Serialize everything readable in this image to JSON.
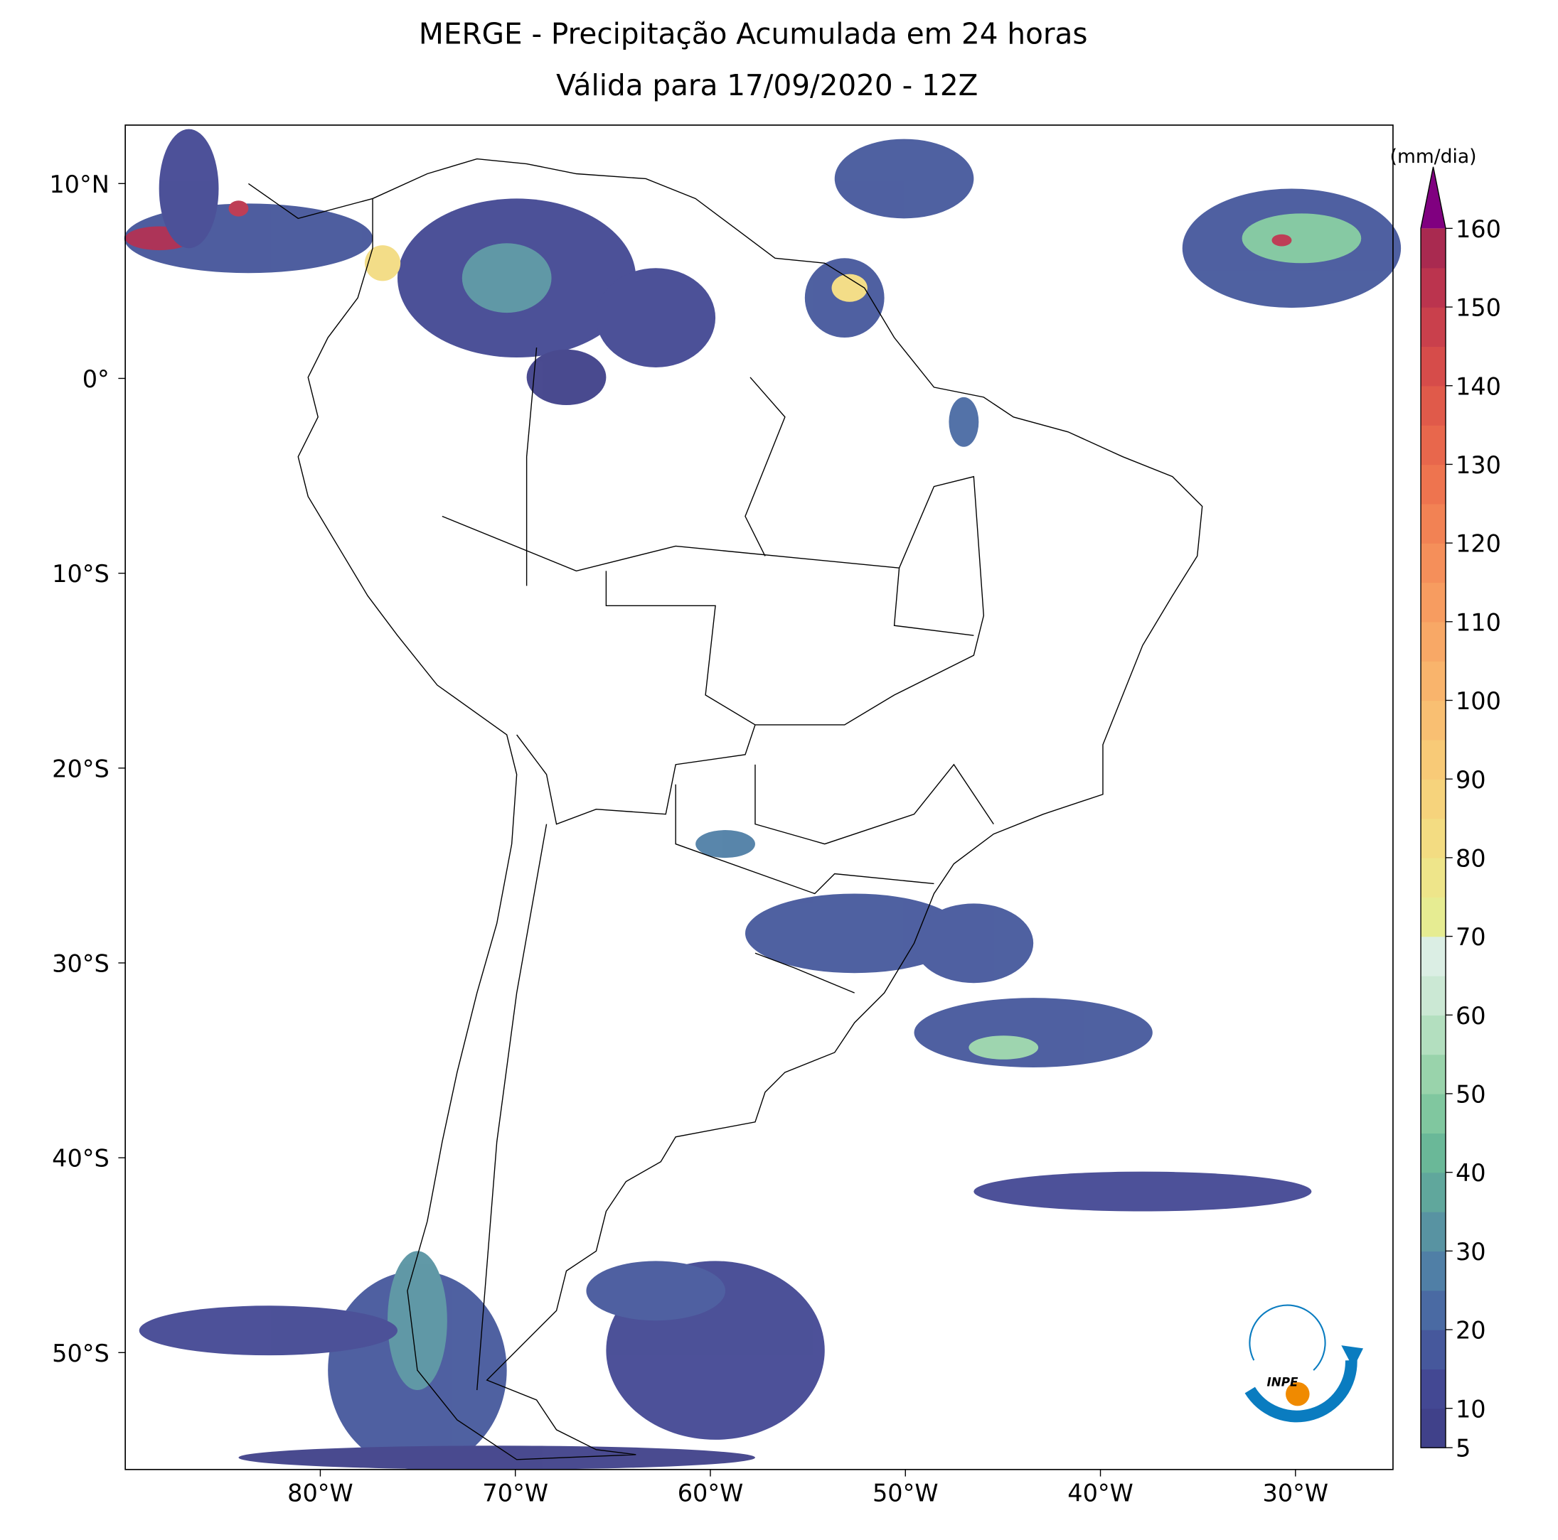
{
  "chart_data": {
    "type": "map",
    "title": "MERGE - Precipitação Acumulada em 24 horas",
    "subtitle": "Válida para 17/09/2020 - 12Z",
    "xlim": [
      -90,
      -25
    ],
    "ylim": [
      -56,
      13
    ],
    "xticks": [
      {
        "value": -80,
        "label": "80°W"
      },
      {
        "value": -70,
        "label": "70°W"
      },
      {
        "value": -60,
        "label": "60°W"
      },
      {
        "value": -50,
        "label": "50°W"
      },
      {
        "value": -40,
        "label": "40°W"
      },
      {
        "value": -30,
        "label": "30°W"
      }
    ],
    "yticks": [
      {
        "value": 10,
        "label": "10°N"
      },
      {
        "value": 0,
        "label": "0°"
      },
      {
        "value": -10,
        "label": "10°S"
      },
      {
        "value": -20,
        "label": "20°S"
      },
      {
        "value": -30,
        "label": "30°S"
      },
      {
        "value": -40,
        "label": "40°S"
      },
      {
        "value": -50,
        "label": "50°S"
      }
    ],
    "colorbar": {
      "label": "(mm/dia)",
      "lim": [
        5,
        160
      ],
      "ticks": [
        5,
        10,
        20,
        30,
        40,
        50,
        60,
        70,
        80,
        90,
        100,
        110,
        120,
        130,
        140,
        150,
        160
      ],
      "colors": [
        "#40418a",
        "#434893",
        "#46589c",
        "#4a6aa3",
        "#507fa6",
        "#5893a2",
        "#60a79c",
        "#6ab898",
        "#80c79f",
        "#99d3ab",
        "#b3dfbf",
        "#cbe8d4",
        "#dbeee4",
        "#e6ec92",
        "#eee58a",
        "#f3dc82",
        "#f6d37c",
        "#f8ca77",
        "#f9bf72",
        "#f9b46c",
        "#f8a866",
        "#f79c60",
        "#f58f5a",
        "#f28254",
        "#ee744f",
        "#e8674c",
        "#e05a4a",
        "#d64c4a",
        "#c9404c",
        "#bb344e",
        "#a92a50"
      ],
      "extend_color": "#800080"
    },
    "logo_text": "INPE"
  }
}
